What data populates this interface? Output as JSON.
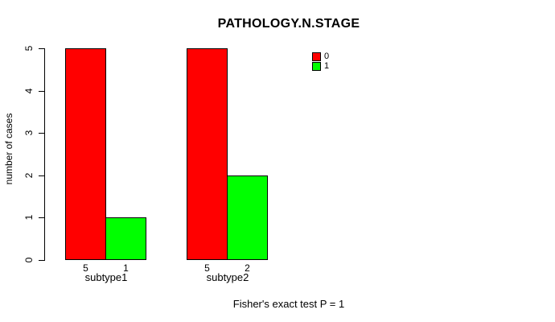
{
  "title": "PATHOLOGY.N.STAGE",
  "ylabel": "number of cases",
  "footer": "Fisher's exact test P = 1",
  "colors": {
    "series0": "#FF0000",
    "series1": "#00FF00",
    "axis": "#000000",
    "background": "#FFFFFF"
  },
  "chart_data": {
    "type": "bar",
    "grouped": true,
    "title": "PATHOLOGY.N.STAGE",
    "xlabel": "",
    "ylabel": "number of cases",
    "categories": [
      "subtype1",
      "subtype2"
    ],
    "series": [
      {
        "name": "0",
        "color": "#FF0000",
        "values": [
          5,
          5
        ]
      },
      {
        "name": "1",
        "color": "#00FF00",
        "values": [
          1,
          2
        ]
      }
    ],
    "bar_count_labels": [
      [
        "5",
        "1"
      ],
      [
        "5",
        "2"
      ]
    ],
    "ylim": [
      0,
      5
    ],
    "yticks": [
      0,
      1,
      2,
      3,
      4,
      5
    ],
    "grid": false,
    "legend_position": "top-right",
    "annotation": "Fisher's exact test P = 1"
  }
}
